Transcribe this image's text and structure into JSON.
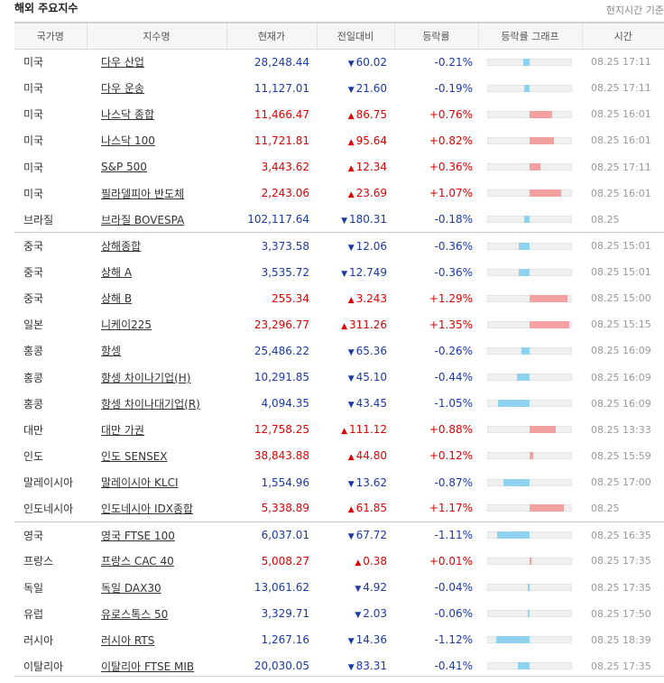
{
  "header": {
    "title": "해외 주요지수",
    "note": "현지시간 기준"
  },
  "columns": [
    "국가명",
    "지수명",
    "현재가",
    "전일대비",
    "등락률",
    "등락률 그래프",
    "시간"
  ],
  "colors": {
    "up": "#dd0000",
    "down": "#1a3aa6",
    "bar_up": "#f3a0a0",
    "bar_down": "#8fd2f0"
  },
  "rows": [
    {
      "country": "미국",
      "name": "다우 산업",
      "price": "28,248.44",
      "dir": "down",
      "change": "60.02",
      "pct": "-0.21%",
      "pct_value": -0.21,
      "time": "08.25 17:11"
    },
    {
      "country": "미국",
      "name": "다우 운송",
      "price": "11,127.01",
      "dir": "down",
      "change": "21.60",
      "pct": "-0.19%",
      "pct_value": -0.19,
      "time": "08.25 17:11"
    },
    {
      "country": "미국",
      "name": "나스닥 종합",
      "price": "11,466.47",
      "dir": "up",
      "change": "86.75",
      "pct": "+0.76%",
      "pct_value": 0.76,
      "time": "08.25 16:01"
    },
    {
      "country": "미국",
      "name": "나스닥 100",
      "price": "11,721.81",
      "dir": "up",
      "change": "95.64",
      "pct": "+0.82%",
      "pct_value": 0.82,
      "time": "08.25 16:01"
    },
    {
      "country": "미국",
      "name": "S&P 500",
      "price": "3,443.62",
      "dir": "up",
      "change": "12.34",
      "pct": "+0.36%",
      "pct_value": 0.36,
      "time": "08.25 17:11"
    },
    {
      "country": "미국",
      "name": "필라델피아 반도체",
      "price": "2,243.06",
      "dir": "up",
      "change": "23.69",
      "pct": "+1.07%",
      "pct_value": 1.07,
      "time": "08.25 16:01"
    },
    {
      "country": "브라질",
      "name": "브라질 BOVESPA",
      "price": "102,117.64",
      "dir": "down",
      "change": "180.31",
      "pct": "-0.18%",
      "pct_value": -0.18,
      "time": "08.25"
    },
    {
      "country": "중국",
      "name": "상해종합",
      "price": "3,373.58",
      "dir": "down",
      "change": "12.06",
      "pct": "-0.36%",
      "pct_value": -0.36,
      "time": "08.25 15:01",
      "group_start": true
    },
    {
      "country": "중국",
      "name": "상해 A",
      "price": "3,535.72",
      "dir": "down",
      "change": "12.749",
      "pct": "-0.36%",
      "pct_value": -0.36,
      "time": "08.25 15:01"
    },
    {
      "country": "중국",
      "name": "상해 B",
      "price": "255.34",
      "dir": "up",
      "change": "3.243",
      "pct": "+1.29%",
      "pct_value": 1.29,
      "time": "08.25 15:00"
    },
    {
      "country": "일본",
      "name": "니케이225",
      "price": "23,296.77",
      "dir": "up",
      "change": "311.26",
      "pct": "+1.35%",
      "pct_value": 1.35,
      "time": "08.25 15:15"
    },
    {
      "country": "홍콩",
      "name": "항셍",
      "price": "25,486.22",
      "dir": "down",
      "change": "65.36",
      "pct": "-0.26%",
      "pct_value": -0.26,
      "time": "08.25 16:09"
    },
    {
      "country": "홍콩",
      "name": "항셍 차이나기업(H)",
      "price": "10,291.85",
      "dir": "down",
      "change": "45.10",
      "pct": "-0.44%",
      "pct_value": -0.44,
      "time": "08.25 16:09"
    },
    {
      "country": "홍콩",
      "name": "항셍 차이나대기업(R)",
      "price": "4,094.35",
      "dir": "down",
      "change": "43.45",
      "pct": "-1.05%",
      "pct_value": -1.05,
      "time": "08.25 16:09"
    },
    {
      "country": "대만",
      "name": "대만 가권",
      "price": "12,758.25",
      "dir": "up",
      "change": "111.12",
      "pct": "+0.88%",
      "pct_value": 0.88,
      "time": "08.25 13:33"
    },
    {
      "country": "인도",
      "name": "인도 SENSEX",
      "price": "38,843.88",
      "dir": "up",
      "change": "44.80",
      "pct": "+0.12%",
      "pct_value": 0.12,
      "time": "08.25 15:59"
    },
    {
      "country": "말레이시아",
      "name": "말레이시아 KLCI",
      "price": "1,554.96",
      "dir": "down",
      "change": "13.62",
      "pct": "-0.87%",
      "pct_value": -0.87,
      "time": "08.25 17:00"
    },
    {
      "country": "인도네시아",
      "name": "인도네시아 IDX종합",
      "price": "5,338.89",
      "dir": "up",
      "change": "61.85",
      "pct": "+1.17%",
      "pct_value": 1.17,
      "time": "08.25"
    },
    {
      "country": "영국",
      "name": "영국 FTSE 100",
      "price": "6,037.01",
      "dir": "down",
      "change": "67.72",
      "pct": "-1.11%",
      "pct_value": -1.11,
      "time": "08.25 16:35",
      "group_start": true
    },
    {
      "country": "프랑스",
      "name": "프랑스 CAC 40",
      "price": "5,008.27",
      "dir": "up",
      "change": "0.38",
      "pct": "+0.01%",
      "pct_value": 0.01,
      "time": "08.25 17:35"
    },
    {
      "country": "독일",
      "name": "독일 DAX30",
      "price": "13,061.62",
      "dir": "down",
      "change": "4.92",
      "pct": "-0.04%",
      "pct_value": -0.04,
      "time": "08.25 17:35"
    },
    {
      "country": "유럽",
      "name": "유로스톡스 50",
      "price": "3,329.71",
      "dir": "down",
      "change": "2.03",
      "pct": "-0.06%",
      "pct_value": -0.06,
      "time": "08.25 17:50"
    },
    {
      "country": "러시아",
      "name": "러시아 RTS",
      "price": "1,267.16",
      "dir": "down",
      "change": "14.36",
      "pct": "-1.12%",
      "pct_value": -1.12,
      "time": "08.25 18:39"
    },
    {
      "country": "이탈리아",
      "name": "이탈리아 FTSE MIB",
      "price": "20,030.05",
      "dir": "down",
      "change": "83.31",
      "pct": "-0.41%",
      "pct_value": -0.41,
      "time": "08.25 17:35"
    }
  ]
}
